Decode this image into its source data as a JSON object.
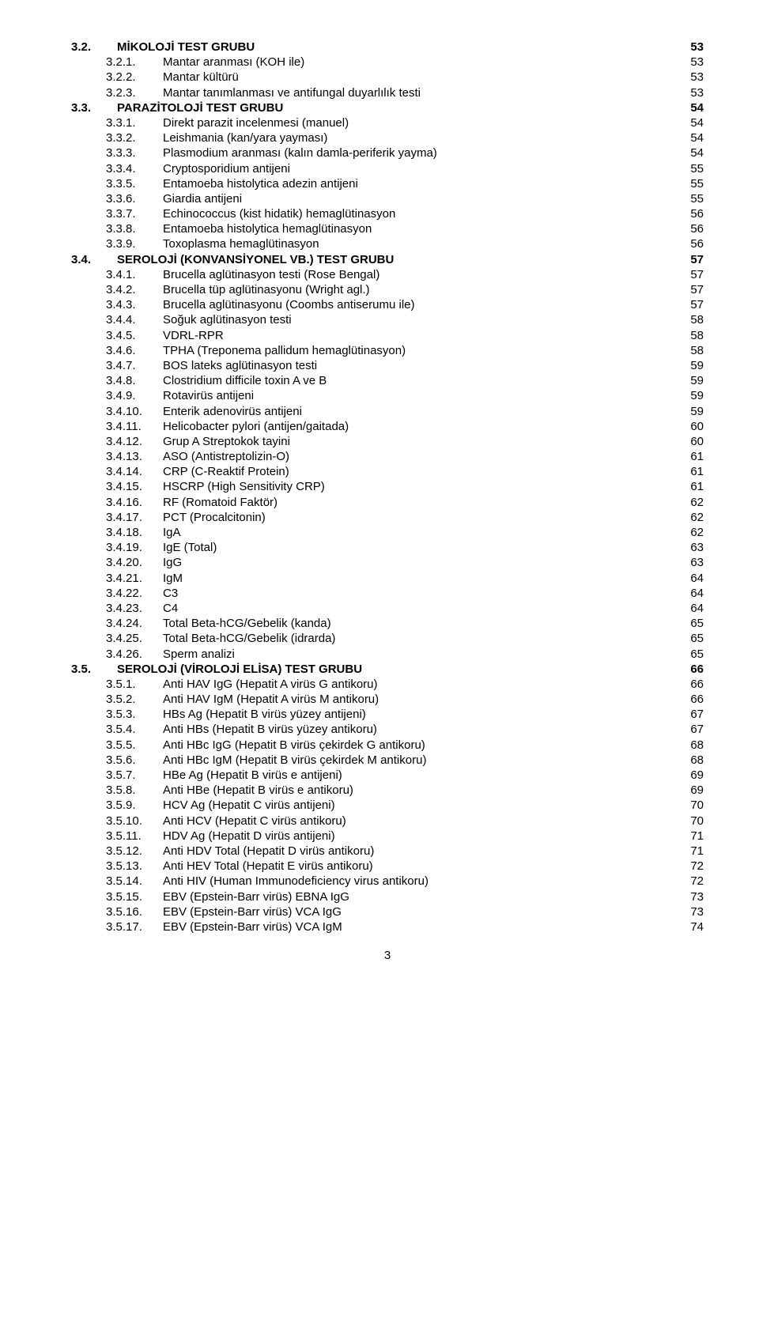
{
  "colors": {
    "background": "#ffffff",
    "text": "#000000"
  },
  "typography": {
    "font_family": "Arial",
    "font_size_pt": 11,
    "line_height": 1.28
  },
  "page_number": "3",
  "toc": [
    {
      "num": "3.2.",
      "label": "MİKOLOJİ TEST GRUBU",
      "page": "53",
      "bold": true,
      "level": 1
    },
    {
      "num": "3.2.1.",
      "label": "Mantar aranması (KOH ile)",
      "page": "53",
      "bold": false,
      "level": 2
    },
    {
      "num": "3.2.2.",
      "label": "Mantar kültürü",
      "page": "53",
      "bold": false,
      "level": 2
    },
    {
      "num": "3.2.3.",
      "label": "Mantar tanımlanması ve antifungal duyarlılık testi",
      "page": "53",
      "bold": false,
      "level": 2
    },
    {
      "num": "3.3.",
      "label": "PARAZİTOLOJİ TEST GRUBU",
      "page": "54",
      "bold": true,
      "level": 1
    },
    {
      "num": "3.3.1.",
      "label": "Direkt parazit incelenmesi (manuel)",
      "page": "54",
      "bold": false,
      "level": 2
    },
    {
      "num": "3.3.2.",
      "label": "Leishmania (kan/yara yayması)",
      "page": "54",
      "bold": false,
      "level": 2
    },
    {
      "num": "3.3.3.",
      "label": "Plasmodium aranması (kalın damla-periferik yayma)",
      "page": "54",
      "bold": false,
      "level": 2
    },
    {
      "num": "3.3.4.",
      "label": "Cryptosporidium antijeni",
      "page": "55",
      "bold": false,
      "level": 2
    },
    {
      "num": "3.3.5.",
      "label": "Entamoeba histolytica adezin antijeni",
      "page": "55",
      "bold": false,
      "level": 2
    },
    {
      "num": "3.3.6.",
      "label": "Giardia antijeni",
      "page": "55",
      "bold": false,
      "level": 2
    },
    {
      "num": "3.3.7.",
      "label": "Echinococcus (kist hidatik) hemaglütinasyon",
      "page": "56",
      "bold": false,
      "level": 2
    },
    {
      "num": "3.3.8.",
      "label": "Entamoeba histolytica hemaglütinasyon",
      "page": "56",
      "bold": false,
      "level": 2
    },
    {
      "num": "3.3.9.",
      "label": "Toxoplasma hemaglütinasyon",
      "page": "56",
      "bold": false,
      "level": 2
    },
    {
      "num": "3.4.",
      "label": "SEROLOJİ (KONVANSİYONEL VB.) TEST GRUBU",
      "page": "57",
      "bold": true,
      "level": 1
    },
    {
      "num": "3.4.1.",
      "label": "Brucella aglütinasyon testi (Rose Bengal)",
      "page": "57",
      "bold": false,
      "level": 2
    },
    {
      "num": "3.4.2.",
      "label": "Brucella tüp aglütinasyonu (Wright agl.)",
      "page": "57",
      "bold": false,
      "level": 2
    },
    {
      "num": "3.4.3.",
      "label": "Brucella aglütinasyonu (Coombs antiserumu ile)",
      "page": "57",
      "bold": false,
      "level": 2
    },
    {
      "num": "3.4.4.",
      "label": "Soğuk aglütinasyon testi",
      "page": "58",
      "bold": false,
      "level": 2
    },
    {
      "num": "3.4.5.",
      "label": "VDRL-RPR",
      "page": "58",
      "bold": false,
      "level": 2
    },
    {
      "num": "3.4.6.",
      "label": "TPHA (Treponema pallidum hemaglütinasyon)",
      "page": "58",
      "bold": false,
      "level": 2
    },
    {
      "num": "3.4.7.",
      "label": "BOS lateks aglütinasyon testi",
      "page": "59",
      "bold": false,
      "level": 2
    },
    {
      "num": "3.4.8.",
      "label": "Clostridium difficile toxin A ve B",
      "page": "59",
      "bold": false,
      "level": 2
    },
    {
      "num": "3.4.9.",
      "label": "Rotavirüs antijeni",
      "page": "59",
      "bold": false,
      "level": 2
    },
    {
      "num": "3.4.10.",
      "label": "Enterik adenovirüs antijeni",
      "page": "59",
      "bold": false,
      "level": 3
    },
    {
      "num": "3.4.11.",
      "label": "Helicobacter pylori (antijen/gaitada)",
      "page": "60",
      "bold": false,
      "level": 3
    },
    {
      "num": "3.4.12.",
      "label": "Grup A Streptokok tayini",
      "page": "60",
      "bold": false,
      "level": 3
    },
    {
      "num": "3.4.13.",
      "label": "ASO (Antistreptolizin-O)",
      "page": "61",
      "bold": false,
      "level": 3
    },
    {
      "num": "3.4.14.",
      "label": "CRP (C-Reaktif Protein)",
      "page": "61",
      "bold": false,
      "level": 3
    },
    {
      "num": "3.4.15.",
      "label": "HSCRP (High Sensitivity CRP)",
      "page": "61",
      "bold": false,
      "level": 3
    },
    {
      "num": "3.4.16.",
      "label": "RF (Romatoid Faktör)",
      "page": "62",
      "bold": false,
      "level": 3
    },
    {
      "num": "3.4.17.",
      "label": "PCT (Procalcitonin)",
      "page": "62",
      "bold": false,
      "level": 3
    },
    {
      "num": "3.4.18.",
      "label": "IgA",
      "page": "62",
      "bold": false,
      "level": 3
    },
    {
      "num": "3.4.19.",
      "label": "IgE (Total)",
      "page": "63",
      "bold": false,
      "level": 3
    },
    {
      "num": "3.4.20.",
      "label": "IgG",
      "page": "63",
      "bold": false,
      "level": 3
    },
    {
      "num": "3.4.21.",
      "label": "IgM",
      "page": "64",
      "bold": false,
      "level": 3
    },
    {
      "num": "3.4.22.",
      "label": "C3",
      "page": "64",
      "bold": false,
      "level": 3
    },
    {
      "num": "3.4.23.",
      "label": "C4",
      "page": "64",
      "bold": false,
      "level": 3
    },
    {
      "num": "3.4.24.",
      "label": "Total Beta-hCG/Gebelik (kanda)",
      "page": "65",
      "bold": false,
      "level": 3
    },
    {
      "num": "3.4.25.",
      "label": "Total Beta-hCG/Gebelik (idrarda)",
      "page": "65",
      "bold": false,
      "level": 3
    },
    {
      "num": "3.4.26.",
      "label": "Sperm analizi",
      "page": "65",
      "bold": false,
      "level": 3
    },
    {
      "num": "3.5.",
      "label": "SEROLOJİ (VİROLOJİ ELİSA) TEST GRUBU",
      "page": "66",
      "bold": true,
      "level": 1
    },
    {
      "num": "3.5.1.",
      "label": "Anti HAV IgG (Hepatit A virüs G antikoru)",
      "page": "66",
      "bold": false,
      "level": 2
    },
    {
      "num": "3.5.2.",
      "label": "Anti HAV IgM (Hepatit A virüs M antikoru)",
      "page": "66",
      "bold": false,
      "level": 2
    },
    {
      "num": "3.5.3.",
      "label": "HBs Ag (Hepatit B virüs yüzey antijeni)",
      "page": "67",
      "bold": false,
      "level": 2
    },
    {
      "num": "3.5.4.",
      "label": "Anti HBs (Hepatit B virüs yüzey antikoru)",
      "page": "67",
      "bold": false,
      "level": 2
    },
    {
      "num": "3.5.5.",
      "label": "Anti HBc IgG (Hepatit B virüs çekirdek G antikoru)",
      "page": "68",
      "bold": false,
      "level": 2
    },
    {
      "num": "3.5.6.",
      "label": "Anti HBc IgM (Hepatit B virüs çekirdek M antikoru)",
      "page": "68",
      "bold": false,
      "level": 2
    },
    {
      "num": "3.5.7.",
      "label": "HBe Ag (Hepatit B virüs e antijeni)",
      "page": "69",
      "bold": false,
      "level": 2
    },
    {
      "num": "3.5.8.",
      "label": "Anti HBe (Hepatit B virüs e antikoru)",
      "page": "69",
      "bold": false,
      "level": 2
    },
    {
      "num": "3.5.9.",
      "label": "HCV Ag (Hepatit C virüs antijeni)",
      "page": "70",
      "bold": false,
      "level": 2
    },
    {
      "num": "3.5.10.",
      "label": "Anti HCV (Hepatit C virüs antikoru)",
      "page": "70",
      "bold": false,
      "level": 3
    },
    {
      "num": "3.5.11.",
      "label": "HDV Ag (Hepatit D virüs antijeni)",
      "page": "71",
      "bold": false,
      "level": 3
    },
    {
      "num": "3.5.12.",
      "label": "Anti HDV Total (Hepatit D virüs antikoru)",
      "page": "71",
      "bold": false,
      "level": 3
    },
    {
      "num": "3.5.13.",
      "label": "Anti HEV Total (Hepatit E virüs antikoru)",
      "page": "72",
      "bold": false,
      "level": 3
    },
    {
      "num": "3.5.14.",
      "label": "Anti HIV (Human Immunodeficiency virus antikoru)",
      "page": "72",
      "bold": false,
      "level": 3
    },
    {
      "num": "3.5.15.",
      "label": "EBV (Epstein-Barr virüs) EBNA IgG",
      "page": "73",
      "bold": false,
      "level": 3
    },
    {
      "num": "3.5.16.",
      "label": "EBV (Epstein-Barr virüs) VCA IgG",
      "page": "73",
      "bold": false,
      "level": 3
    },
    {
      "num": "3.5.17.",
      "label": "EBV (Epstein-Barr virüs) VCA IgM",
      "page": "74",
      "bold": false,
      "level": 3
    }
  ],
  "layout": {
    "num_col_width_lvl1": "58px",
    "num_col_width_lvl2": "72px",
    "num_col_width_lvl3": "72px"
  }
}
